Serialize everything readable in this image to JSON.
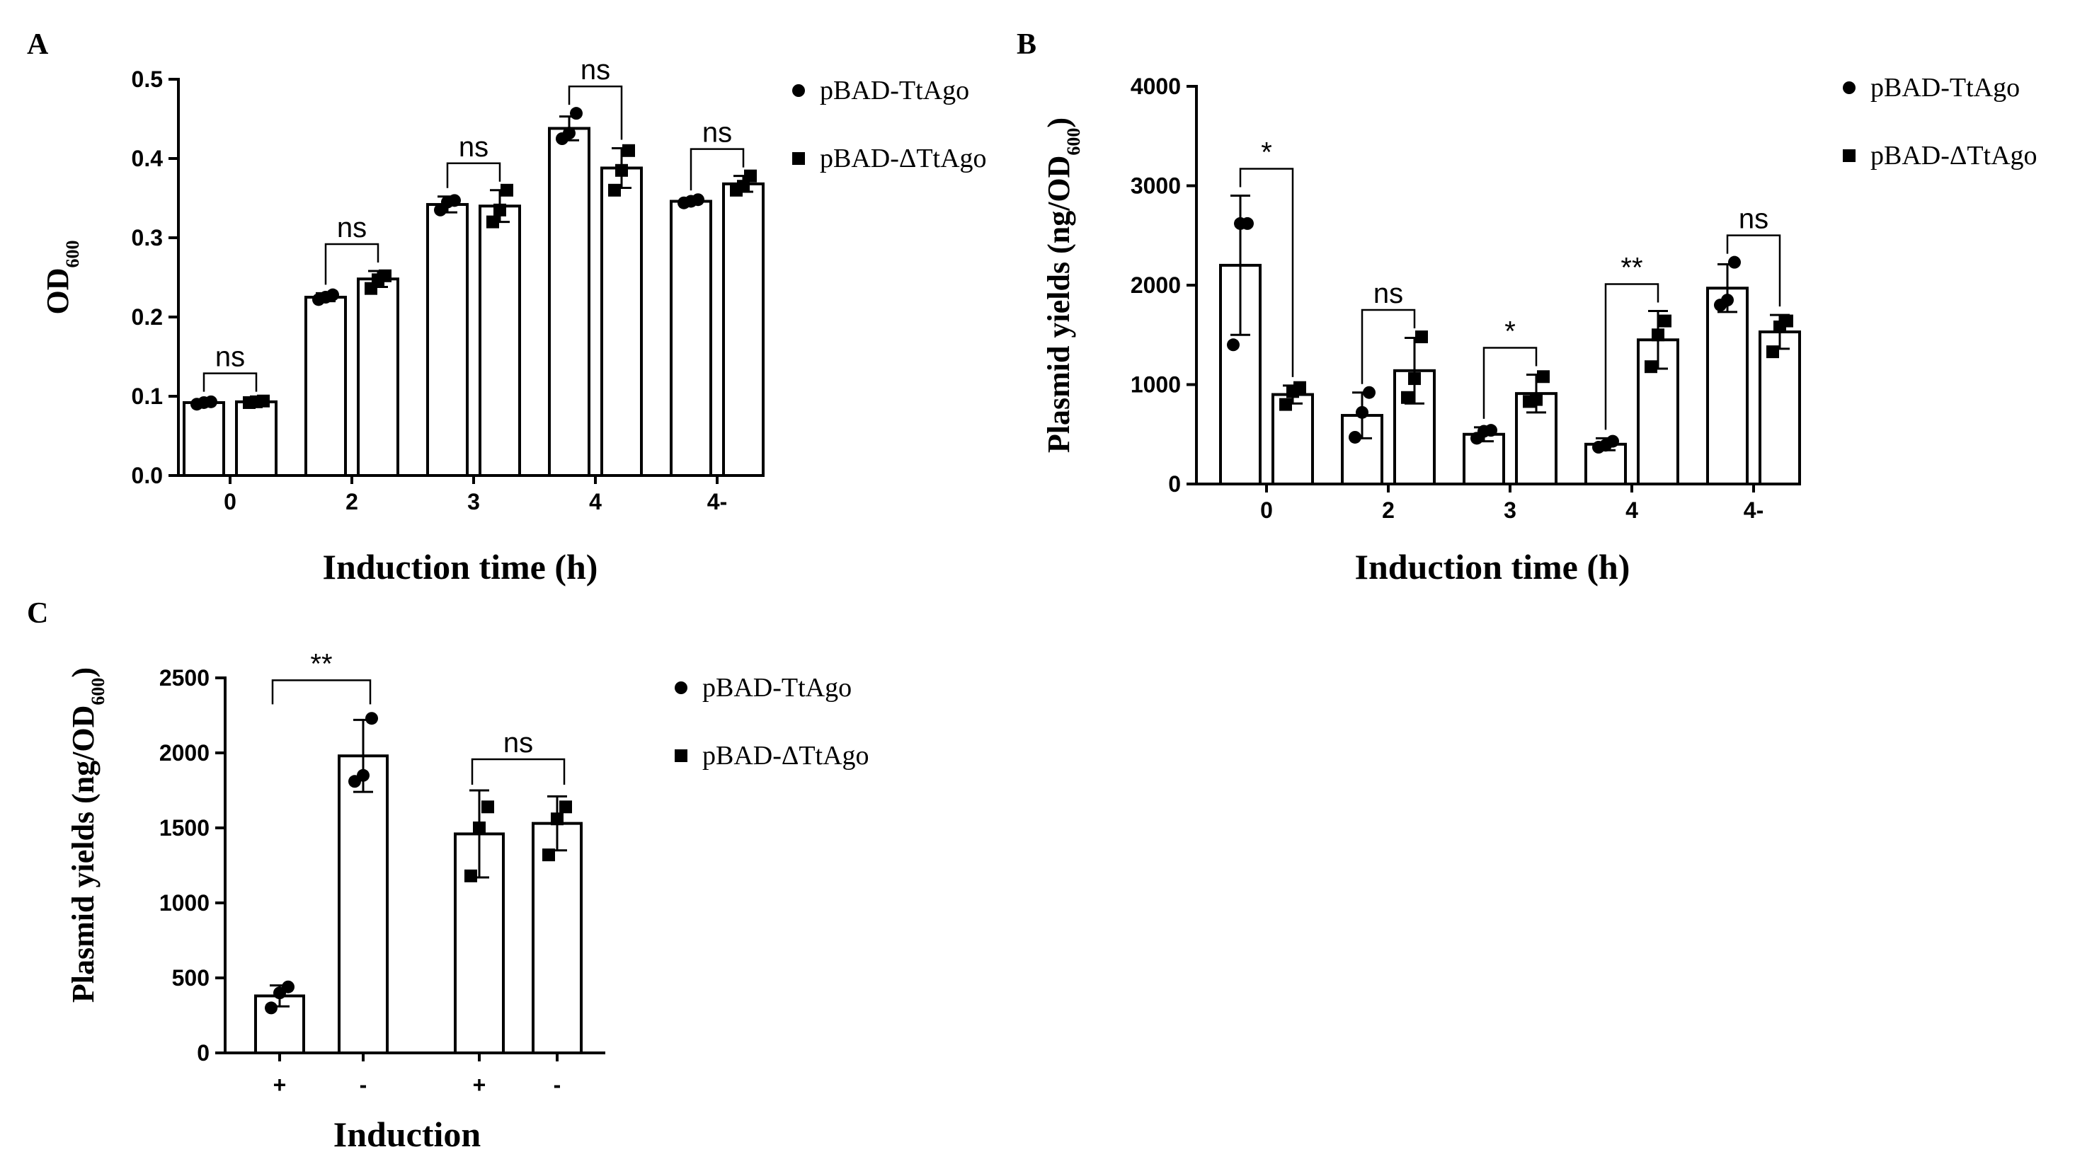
{
  "chart_data": [
    {
      "panel": "A",
      "type": "bar",
      "categories": [
        "0",
        "2",
        "3",
        "4",
        "4-"
      ],
      "series": [
        {
          "name": "pBAD-TtAgo",
          "marker": "circle",
          "values": [
            0.092,
            0.225,
            0.342,
            0.438,
            0.346
          ],
          "errors": [
            0.003,
            0.005,
            0.01,
            0.015,
            0.003
          ],
          "points": [
            [
              0.09,
              0.092,
              0.093
            ],
            [
              0.222,
              0.225,
              0.228
            ],
            [
              0.335,
              0.345,
              0.347
            ],
            [
              0.425,
              0.432,
              0.457
            ],
            [
              0.344,
              0.346,
              0.348
            ]
          ]
        },
        {
          "name": "pBAD-ΔTtAgo",
          "marker": "square",
          "values": [
            0.093,
            0.248,
            0.34,
            0.388,
            0.368
          ],
          "errors": [
            0.002,
            0.01,
            0.02,
            0.025,
            0.01
          ],
          "points": [
            [
              0.092,
              0.093,
              0.094
            ],
            [
              0.236,
              0.247,
              0.252
            ],
            [
              0.32,
              0.335,
              0.36
            ],
            [
              0.36,
              0.385,
              0.41
            ],
            [
              0.36,
              0.365,
              0.378
            ]
          ]
        }
      ],
      "significance": [
        "ns",
        "ns",
        "ns",
        "ns",
        "ns"
      ],
      "title": "",
      "ylabel": "OD",
      "ylabel_sub": "600",
      "xlabel": "Induction time (h)",
      "ylim": [
        0,
        0.5
      ],
      "yticks": [
        "0.0",
        "0.1",
        "0.2",
        "0.3",
        "0.4",
        "0.5"
      ],
      "legend": "top-right"
    },
    {
      "panel": "B",
      "type": "bar",
      "categories": [
        "0",
        "2",
        "3",
        "4",
        "4-"
      ],
      "series": [
        {
          "name": "pBAD-TtAgo",
          "marker": "circle",
          "values": [
            2200,
            690,
            500,
            400,
            1970
          ],
          "errors": [
            700,
            230,
            70,
            60,
            240
          ],
          "points": [
            [
              1400,
              2620,
              2620
            ],
            [
              470,
              720,
              920
            ],
            [
              460,
              530,
              540
            ],
            [
              370,
              390,
              430
            ],
            [
              1800,
              1850,
              2230
            ]
          ]
        },
        {
          "name": "pBAD-ΔTtAgo",
          "marker": "square",
          "values": [
            900,
            1140,
            910,
            1450,
            1530
          ],
          "errors": [
            90,
            330,
            190,
            290,
            170
          ],
          "points": [
            [
              800,
              930,
              970
            ],
            [
              870,
              1060,
              1480
            ],
            [
              830,
              850,
              1080
            ],
            [
              1180,
              1500,
              1640
            ],
            [
              1330,
              1580,
              1640
            ]
          ]
        }
      ],
      "significance": [
        "*",
        "ns",
        "*",
        "**",
        "ns"
      ],
      "title": "",
      "ylabel": "Plasmid yields (ng/OD",
      "ylabel_sub": "600",
      "ylabel_end": ")",
      "xlabel": "Induction time (h)",
      "ylim": [
        0,
        4000
      ],
      "yticks": [
        "0",
        "1000",
        "2000",
        "3000",
        "4000"
      ],
      "legend": "top-right"
    },
    {
      "panel": "C",
      "type": "bar",
      "categories": [
        "+",
        "-",
        "+",
        "-"
      ],
      "series_per_bar": [
        "pBAD-TtAgo",
        "pBAD-TtAgo",
        "pBAD-ΔTtAgo",
        "pBAD-ΔTtAgo"
      ],
      "values": [
        380,
        1980,
        1460,
        1530
      ],
      "errors": [
        70,
        240,
        290,
        180
      ],
      "points": [
        [
          300,
          400,
          440
        ],
        [
          1810,
          1850,
          2230
        ],
        [
          1180,
          1500,
          1640
        ],
        [
          1320,
          1560,
          1640
        ]
      ],
      "markers": [
        "circle",
        "circle",
        "square",
        "square"
      ],
      "significance": [
        {
          "pair": [
            0,
            1
          ],
          "label": "**"
        },
        {
          "pair": [
            2,
            3
          ],
          "label": "ns"
        }
      ],
      "title": "",
      "ylabel": "Plasmid yields (ng/OD",
      "ylabel_sub": "600",
      "ylabel_end": ")",
      "xlabel": "Induction",
      "ylim": [
        0,
        2500
      ],
      "yticks": [
        "0",
        "500",
        "1000",
        "1500",
        "2000",
        "2500"
      ],
      "legend": "top-right"
    }
  ],
  "legend_labels": [
    "pBAD-TtAgo",
    "pBAD-ΔTtAgo"
  ],
  "panel_labels": [
    "A",
    "B",
    "C"
  ]
}
